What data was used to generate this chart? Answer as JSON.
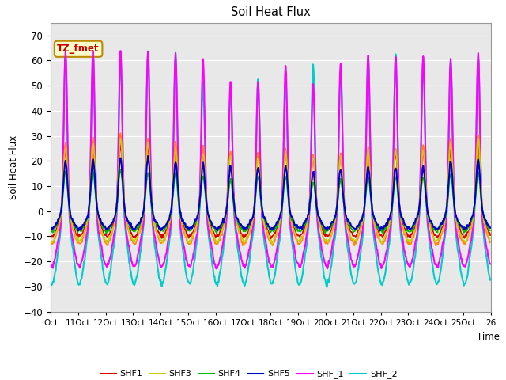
{
  "title": "Soil Heat Flux",
  "ylabel": "Soil Heat Flux",
  "xlabel": "Time",
  "n_days": 16,
  "ylim": [
    -40,
    75
  ],
  "yticks": [
    -40,
    -30,
    -20,
    -10,
    0,
    10,
    20,
    30,
    40,
    50,
    60,
    70
  ],
  "xtick_labels": [
    "Oct",
    "11Oct",
    "12Oct",
    "13Oct",
    "14Oct",
    "15Oct",
    "16Oct",
    "17Oct",
    "18Oct",
    "19Oct",
    "20Oct",
    "21Oct",
    "22Oct",
    "23Oct",
    "24Oct",
    "25Oct",
    "26"
  ],
  "series_colors": {
    "SHF1": "#dd0000",
    "SHF2": "#ff8800",
    "SHF3": "#cccc00",
    "SHF4": "#00bb00",
    "SHF5": "#0000cc",
    "SHF_1": "#ff00ff",
    "SHF_2": "#00cccc"
  },
  "series_lw": {
    "SHF1": 1.2,
    "SHF2": 1.2,
    "SHF3": 1.2,
    "SHF4": 1.2,
    "SHF5": 1.5,
    "SHF_1": 1.5,
    "SHF_2": 1.5
  },
  "annotation_text": "TZ_fmet",
  "annotation_color": "#cc0000",
  "annotation_bg": "#ffffcc",
  "annotation_border": "#bb8800",
  "bg_color": "#e8e8e8",
  "grid_color": "#ffffff",
  "day_peaks_shf1": [
    25,
    26,
    27,
    26,
    25,
    24,
    24,
    24,
    24,
    22,
    23,
    24,
    24,
    24,
    25,
    26
  ],
  "day_peaks_shf2": [
    28,
    30,
    32,
    30,
    28,
    26,
    25,
    24,
    25,
    23,
    24,
    26,
    26,
    27,
    30,
    32
  ],
  "day_peaks_shf3": [
    26,
    28,
    30,
    28,
    26,
    24,
    23,
    22,
    24,
    22,
    23,
    25,
    25,
    25,
    28,
    30
  ],
  "day_peaks_shf4": [
    16,
    16,
    17,
    16,
    15,
    14,
    13,
    14,
    14,
    12,
    13,
    14,
    14,
    14,
    15,
    16
  ],
  "day_peaks_shf5": [
    20,
    21,
    22,
    22,
    20,
    19,
    18,
    18,
    18,
    16,
    17,
    18,
    18,
    18,
    20,
    21
  ],
  "day_peaks_shf_1": [
    65,
    65,
    65,
    65,
    64,
    62,
    53,
    53,
    59,
    52,
    60,
    63,
    63,
    63,
    62,
    64
  ],
  "day_peaks_shf_2": [
    65,
    65,
    64,
    65,
    65,
    53,
    51,
    54,
    54,
    60,
    60,
    63,
    63,
    63,
    62,
    64
  ],
  "night_min_shf1": -10,
  "night_min_shf2": -13,
  "night_min_shf3": -12,
  "night_min_shf4": -8,
  "night_min_shf5": -7,
  "night_min_shf_1": -22,
  "night_min_shf_2": -29
}
